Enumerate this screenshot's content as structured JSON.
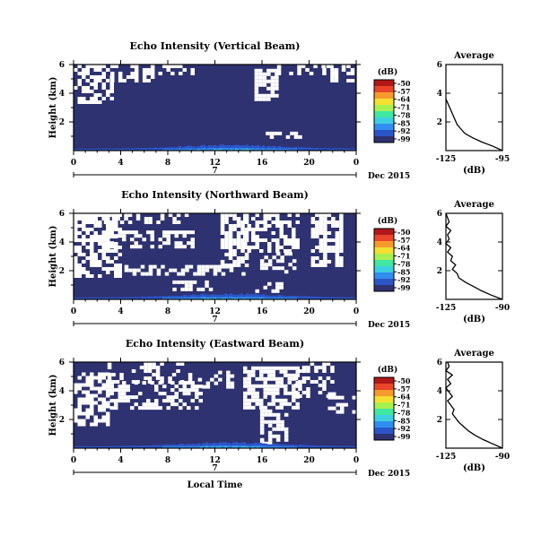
{
  "chart_data": [
    {
      "type": "heatmap",
      "title": "Echo Intensity (Vertical Beam)",
      "ylabel": "Height (km)",
      "xlim": [
        0,
        24
      ],
      "ylim": [
        0,
        6
      ],
      "xticks": [
        "0",
        "4",
        "8",
        "12",
        "16",
        "20",
        "0"
      ],
      "yticks": [
        "2",
        "4",
        "6"
      ],
      "date_marker": "7",
      "date_label": "Dec 2015",
      "colorbar": {
        "unit": "(dB)",
        "ticks": [
          "-50",
          "-57",
          "-64",
          "-71",
          "-78",
          "-85",
          "-92",
          "-99"
        ]
      },
      "average": {
        "title": "Average",
        "xlabel": "(dB)",
        "xticks": [
          "-125",
          "-95"
        ],
        "xlim": [
          -125,
          -95
        ],
        "yticks": [
          "2",
          "4",
          "6"
        ],
        "profile_km": [
          0,
          0.3,
          0.6,
          0.9,
          1.2,
          1.5,
          1.8,
          2.1,
          2.4,
          2.7,
          3.0,
          3.3,
          3.6
        ],
        "profile_db": [
          -95,
          -100,
          -106,
          -111,
          -115,
          -117,
          -119,
          -120,
          -121,
          -122,
          -123,
          -124,
          -125
        ]
      }
    },
    {
      "type": "heatmap",
      "title": "Echo Intensity (Northward Beam)",
      "ylabel": "Height (km)",
      "xlim": [
        0,
        24
      ],
      "ylim": [
        0,
        6
      ],
      "xticks": [
        "0",
        "4",
        "8",
        "12",
        "16",
        "20",
        "0"
      ],
      "yticks": [
        "2",
        "4",
        "6"
      ],
      "date_marker": "7",
      "date_label": "Dec 2015",
      "colorbar": {
        "unit": "(dB)",
        "ticks": [
          "-50",
          "-57",
          "-64",
          "-71",
          "-78",
          "-85",
          "-92",
          "-99"
        ]
      },
      "average": {
        "title": "Average",
        "xlabel": "(dB)",
        "xticks": [
          "-125",
          "-90"
        ],
        "xlim": [
          -125,
          -90
        ],
        "yticks": [
          "2",
          "4",
          "6"
        ],
        "profile_km": [
          0,
          0.3,
          0.6,
          0.9,
          1.2,
          1.5,
          1.8,
          2.1,
          2.4,
          2.7,
          3.0,
          3.3,
          3.6,
          3.9,
          4.2,
          4.5,
          4.8,
          5.1,
          5.4,
          5.7,
          6.0
        ],
        "profile_db": [
          -90,
          -97,
          -103,
          -108,
          -113,
          -117,
          -118,
          -121,
          -119,
          -122,
          -121,
          -124,
          -122,
          -125,
          -123,
          -124,
          -122,
          -125,
          -123,
          -124,
          -125
        ]
      }
    },
    {
      "type": "heatmap",
      "title": "Echo Intensity (Eastward Beam)",
      "ylabel": "Height (km)",
      "xlim": [
        0,
        24
      ],
      "ylim": [
        0,
        6
      ],
      "xticks": [
        "0",
        "4",
        "8",
        "12",
        "16",
        "20",
        "0"
      ],
      "yticks": [
        "2",
        "4",
        "6"
      ],
      "date_marker": "7",
      "date_label": "Dec 2015",
      "xlabel": "Local Time",
      "colorbar": {
        "unit": "(dB)",
        "ticks": [
          "-50",
          "-57",
          "-64",
          "-71",
          "-78",
          "-85",
          "-92",
          "-99"
        ]
      },
      "average": {
        "title": "Average",
        "xlabel": "(dB)",
        "xticks": [
          "-125",
          "-90"
        ],
        "xlim": [
          -125,
          -90
        ],
        "yticks": [
          "2",
          "4",
          "6"
        ],
        "profile_km": [
          0,
          0.3,
          0.6,
          0.9,
          1.2,
          1.5,
          1.8,
          2.1,
          2.4,
          2.7,
          3.0,
          3.3,
          3.6,
          3.9,
          4.2,
          4.5,
          4.8,
          5.1,
          5.4,
          5.7,
          6.0
        ],
        "profile_db": [
          -90,
          -96,
          -102,
          -107,
          -111,
          -114,
          -117,
          -119,
          -121,
          -120,
          -122,
          -124,
          -121,
          -123,
          -125,
          -122,
          -124,
          -121,
          -125,
          -123,
          -124
        ]
      }
    }
  ],
  "colors": {
    "background_echo": "#2e3270",
    "gap": "#ffffff",
    "colorbar": [
      "#2e3270",
      "#2c55c8",
      "#2f8ef0",
      "#3ccfe0",
      "#3fe7a0",
      "#a8f050",
      "#f4e030",
      "#f59a2c",
      "#e8452a",
      "#b01818"
    ]
  }
}
